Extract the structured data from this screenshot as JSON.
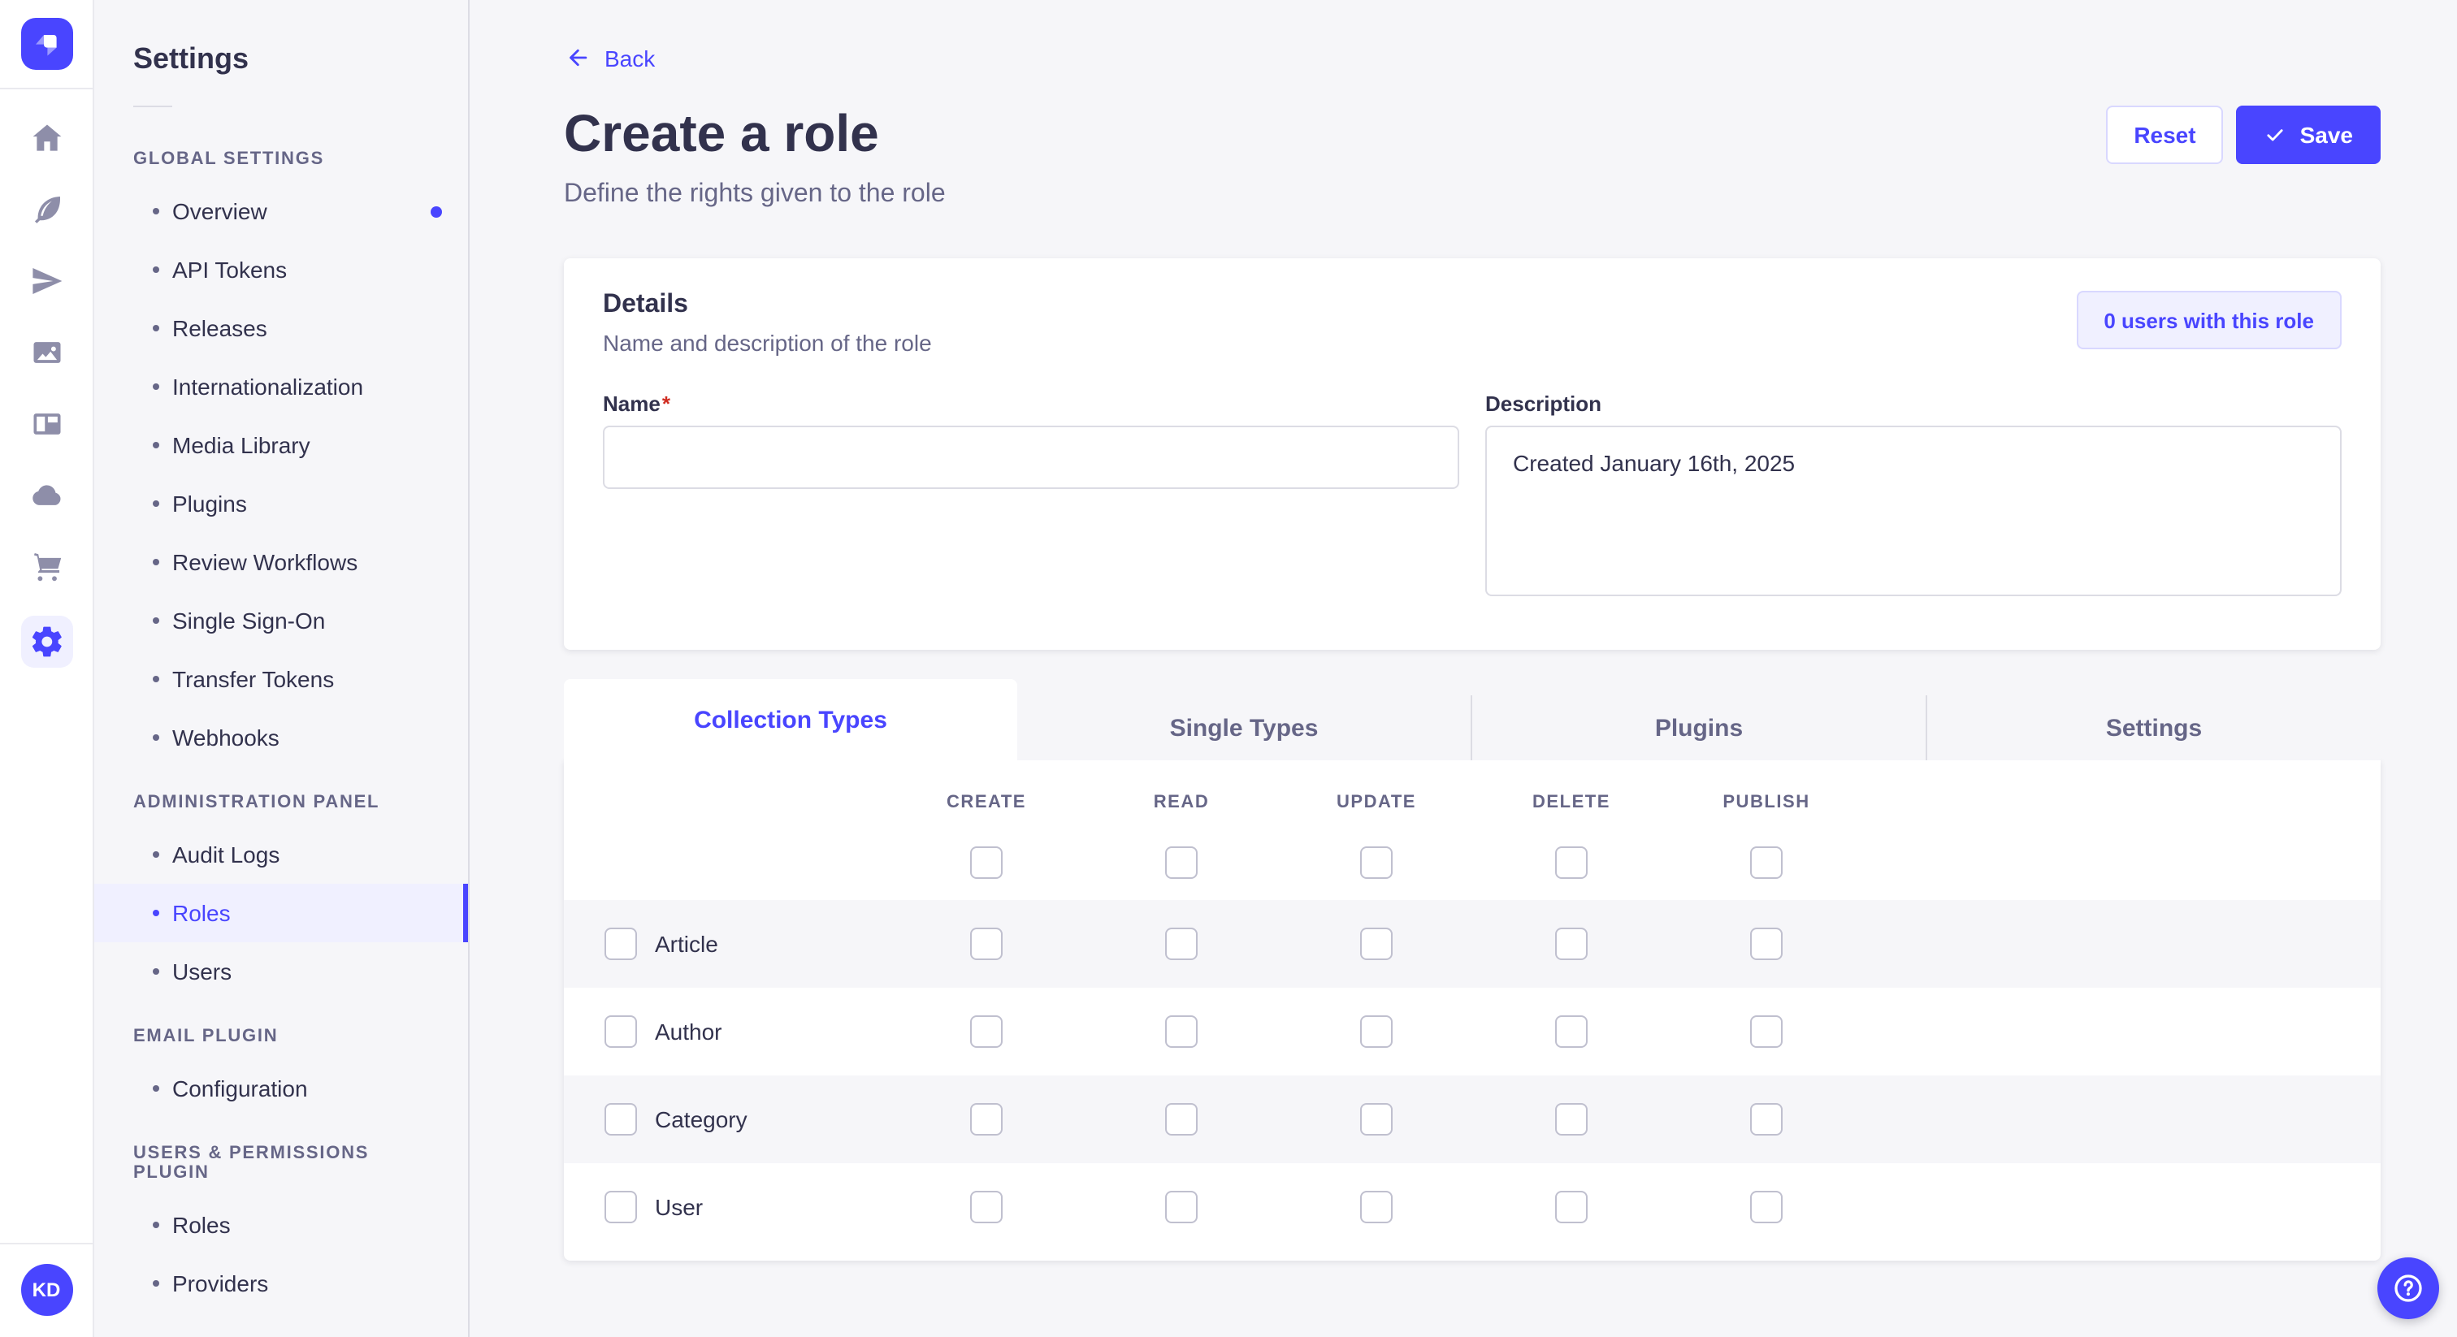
{
  "colors": {
    "accent": "#4945ff",
    "accent_light": "#f0f0ff",
    "accent_border": "#d9d8ff"
  },
  "rail": {
    "logo": "strapi",
    "icons": [
      {
        "name": "home",
        "active": false
      },
      {
        "name": "feather",
        "active": false
      },
      {
        "name": "paper-plane",
        "active": false
      },
      {
        "name": "media",
        "active": false
      },
      {
        "name": "layout",
        "active": false
      },
      {
        "name": "cloud",
        "active": false
      },
      {
        "name": "cart",
        "active": false
      },
      {
        "name": "gear",
        "active": true
      }
    ],
    "avatar_initials": "KD"
  },
  "nav": {
    "title": "Settings",
    "sections": [
      {
        "label": "GLOBAL SETTINGS",
        "items": [
          {
            "label": "Overview",
            "notification": true
          },
          {
            "label": "API Tokens"
          },
          {
            "label": "Releases"
          },
          {
            "label": "Internationalization"
          },
          {
            "label": "Media Library"
          },
          {
            "label": "Plugins"
          },
          {
            "label": "Review Workflows"
          },
          {
            "label": "Single Sign-On"
          },
          {
            "label": "Transfer Tokens"
          },
          {
            "label": "Webhooks"
          }
        ]
      },
      {
        "label": "ADMINISTRATION PANEL",
        "items": [
          {
            "label": "Audit Logs"
          },
          {
            "label": "Roles",
            "active": true
          },
          {
            "label": "Users"
          }
        ]
      },
      {
        "label": "EMAIL PLUGIN",
        "items": [
          {
            "label": "Configuration"
          }
        ]
      },
      {
        "label": "USERS & PERMISSIONS PLUGIN",
        "items": [
          {
            "label": "Roles"
          },
          {
            "label": "Providers"
          }
        ]
      }
    ]
  },
  "header": {
    "back": "Back",
    "title": "Create a role",
    "subtitle": "Define the rights given to the role",
    "reset_label": "Reset",
    "save_label": "Save"
  },
  "details": {
    "title": "Details",
    "subtitle": "Name and description of the role",
    "users_button": "0 users with this role",
    "name": {
      "label": "Name",
      "required_mark": "*",
      "value": "",
      "placeholder": ""
    },
    "description": {
      "label": "Description",
      "value": "Created January 16th, 2025"
    }
  },
  "tabs": [
    {
      "label": "Collection Types",
      "active": true
    },
    {
      "label": "Single Types",
      "active": false
    },
    {
      "label": "Plugins",
      "active": false
    },
    {
      "label": "Settings",
      "active": false
    }
  ],
  "permissions": {
    "columns": [
      "CREATE",
      "READ",
      "UPDATE",
      "DELETE",
      "PUBLISH"
    ],
    "select_all_checked": [
      false,
      false,
      false,
      false,
      false
    ],
    "rows": [
      {
        "label": "Article",
        "row_checked": false,
        "checked": [
          false,
          false,
          false,
          false,
          false
        ]
      },
      {
        "label": "Author",
        "row_checked": false,
        "checked": [
          false,
          false,
          false,
          false,
          false
        ]
      },
      {
        "label": "Category",
        "row_checked": false,
        "checked": [
          false,
          false,
          false,
          false,
          false
        ]
      },
      {
        "label": "User",
        "row_checked": false,
        "checked": [
          false,
          false,
          false,
          false,
          false
        ]
      }
    ]
  },
  "help": {
    "icon": "question-mark"
  }
}
